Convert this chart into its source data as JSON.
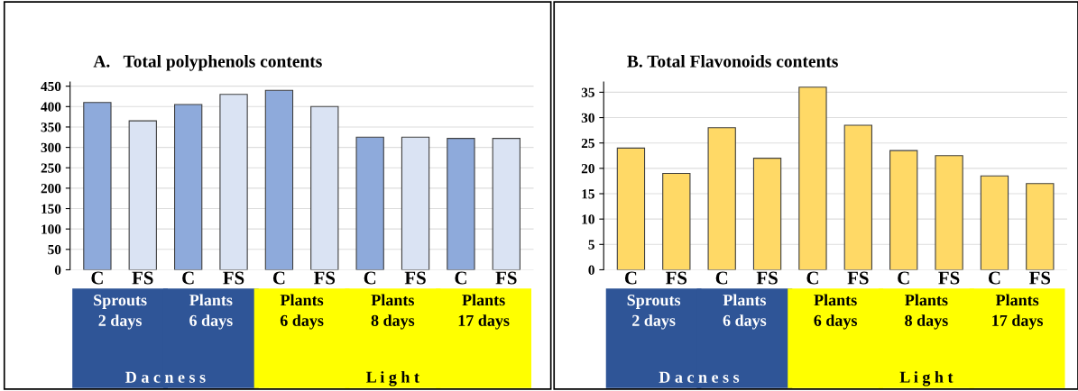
{
  "chart_data": [
    {
      "type": "bar",
      "title": "A.   Total polyphenols contents",
      "categories": [
        "C",
        "FS",
        "C",
        "FS",
        "C",
        "FS",
        "C",
        "FS",
        "C",
        "FS"
      ],
      "values": [
        410,
        365,
        405,
        430,
        440,
        400,
        325,
        325,
        322,
        322
      ],
      "colors": [
        "#8eaadb",
        "#dae3f3",
        "#8eaadb",
        "#dae3f3",
        "#8eaadb",
        "#dae3f3",
        "#8eaadb",
        "#dae3f3",
        "#8eaadb",
        "#dae3f3"
      ],
      "ylim": [
        0,
        460
      ],
      "yticks": [
        0,
        50,
        100,
        150,
        200,
        250,
        300,
        350,
        400,
        450
      ],
      "grid": "y",
      "annotations": [
        "Sprouts\n2 days",
        "Plants\n6 days",
        "Plants\n6 days",
        "Plants\n8 days",
        "Plants\n17 days",
        "D a c n e s s",
        "L i g h t"
      ]
    },
    {
      "type": "bar",
      "title": "B. Total Flavonoids contents",
      "categories": [
        "C",
        "FS",
        "C",
        "FS",
        "C",
        "FS",
        "C",
        "FS",
        "C",
        "FS"
      ],
      "values": [
        24,
        19,
        28,
        22,
        36,
        28.5,
        23.5,
        22.5,
        18.5,
        17
      ],
      "colors": [
        "#ffd966",
        "#ffd966",
        "#ffd966",
        "#ffd966",
        "#ffd966",
        "#ffd966",
        "#ffd966",
        "#ffd966",
        "#ffd966",
        "#ffd966"
      ],
      "ylim": [
        0,
        37
      ],
      "yticks": [
        0,
        5,
        10,
        15,
        20,
        25,
        30,
        35
      ],
      "grid": "y",
      "annotations": [
        "Sprouts\n2 days",
        "Plants\n6 days",
        "Plants\n6 days",
        "Plants\n8 days",
        "Plants\n17 days",
        "D a c n e s s",
        "L i g h t"
      ]
    }
  ]
}
